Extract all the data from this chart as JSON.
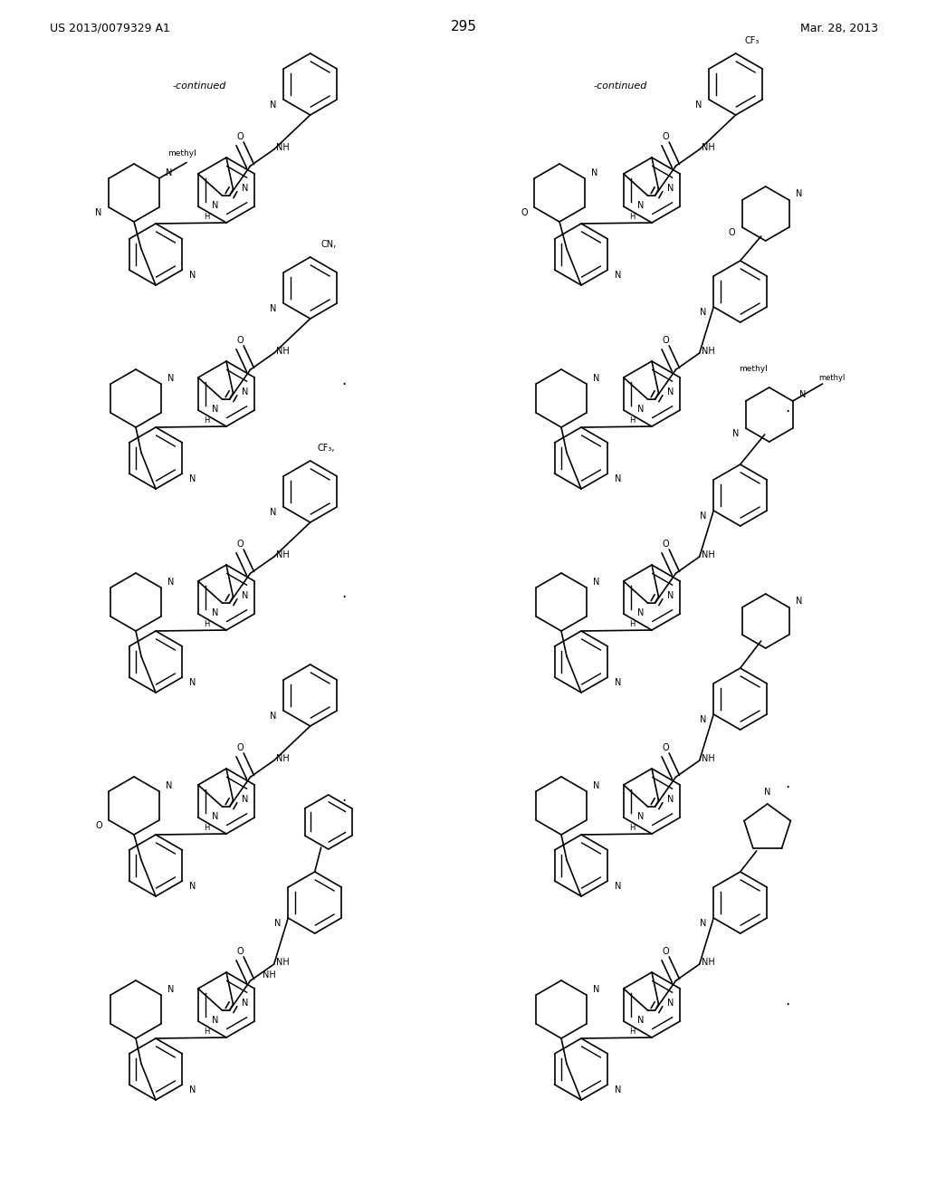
{
  "header_left": "US 2013/0079329 A1",
  "header_right": "Mar. 28, 2013",
  "page_number": "295",
  "continued_left": "-continued",
  "continued_right": "-continued",
  "bg": "#ffffff",
  "lc": "#000000",
  "lw": 1.2
}
